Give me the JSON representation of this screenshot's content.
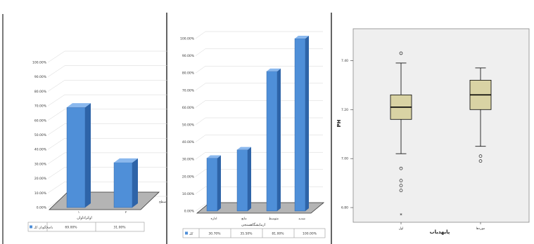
{
  "colors": {
    "bar_front": "#4f8fd8",
    "bar_side": "#2e64a8",
    "bar_top": "#8ab8ee",
    "floor": "#b4b4b4",
    "grid": "#d4d4d4",
    "box_fill": "#d9d3a4",
    "plot_bg": "#efefef"
  },
  "chart_data": [
    {
      "type": "bar",
      "y_ticks": [
        "0.00%",
        "10.00%",
        "20.00%",
        "30.00%",
        "40.00%",
        "50.00%",
        "60.00%",
        "70.00%",
        "80.00%",
        "90.00%",
        "100.00%"
      ],
      "ylim": [
        0,
        100
      ],
      "categories": [
        "۱",
        "۲"
      ],
      "values": [
        69.0,
        31.0
      ],
      "xlabel": "اوکراداوان",
      "legend_label": "پاسخگویان کل",
      "table_values": [
        "69.00%",
        "31.00%"
      ],
      "side_label": "سطح"
    },
    {
      "type": "bar",
      "y_ticks": [
        "0.00%",
        "10.00%",
        "20.00%",
        "30.00%",
        "40.00%",
        "50.00%",
        "60.00%",
        "70.00%",
        "80.00%",
        "90.00%",
        "100.00%"
      ],
      "ylim": [
        0,
        100
      ],
      "categories": [
        "اداره",
        "مانع",
        "متوسط",
        "شدید"
      ],
      "values": [
        30.7,
        35.5,
        81.0,
        100.0
      ],
      "xlabel": "ازمایشگاهسنجی",
      "legend_label": "کل",
      "table_values": [
        "30.70%",
        "35.50%",
        "81.00%",
        "100.00%"
      ]
    },
    {
      "type": "boxplot",
      "ylabel": "PH",
      "xlabel": "پایهدیاب",
      "y_ticks": [
        "6.80",
        "7.00",
        "7.20",
        "7.40"
      ],
      "ylim": [
        6.74,
        7.53
      ],
      "categories": [
        "اول",
        "موردها"
      ],
      "boxes": [
        {
          "min": 7.02,
          "q1": 7.16,
          "median": 7.21,
          "q3": 7.26,
          "max": 7.39,
          "outliers": [
            7.43,
            6.96,
            6.91,
            6.89,
            6.87,
            6.77
          ]
        },
        {
          "min": 7.05,
          "q1": 7.2,
          "median": 7.26,
          "q3": 7.32,
          "max": 7.37,
          "outliers": [
            7.01,
            6.99
          ]
        }
      ]
    }
  ]
}
